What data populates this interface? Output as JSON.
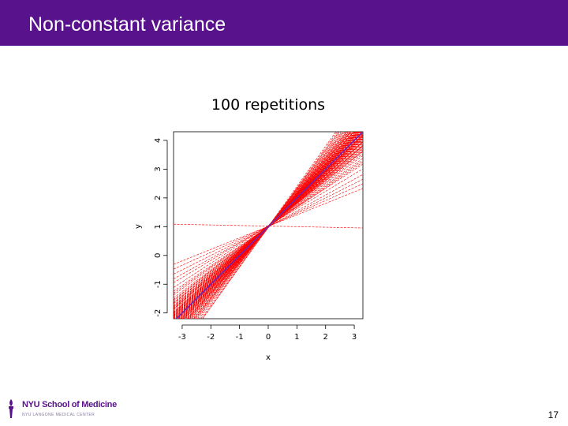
{
  "header": {
    "title": "Non-constant variance"
  },
  "colors": {
    "header_bg": "#58138c",
    "fit_lines": "#ff0000",
    "true_line": "#6a2ab8",
    "logo_purple": "#58138c"
  },
  "footer": {
    "logo_text": "NYU School of Medicine",
    "logo_subtext": "NYU LANGONE MEDICAL CENTER",
    "page_number": "17"
  },
  "chart_data": {
    "type": "line",
    "title": "100 repetitions",
    "xlabel": "x",
    "ylabel": "y",
    "xlim": [
      -3.3,
      3.3
    ],
    "ylim": [
      -2.2,
      4.3
    ],
    "xticks": [
      "-3",
      "-2",
      "-1",
      "0",
      "1",
      "2",
      "3"
    ],
    "yticks": [
      "-2",
      "-1",
      "0",
      "1",
      "2",
      "3",
      "4"
    ],
    "grid": false,
    "legend": "none",
    "true_line": {
      "intercept": 1,
      "slope": 1
    },
    "repetitions": 100,
    "fit_lines": [
      {
        "intercept": 0.98,
        "slope": 1.0
      },
      {
        "intercept": 1.02,
        "slope": 0.92
      },
      {
        "intercept": 1.0,
        "slope": 1.08
      },
      {
        "intercept": 0.97,
        "slope": 0.86
      },
      {
        "intercept": 1.01,
        "slope": 1.14
      },
      {
        "intercept": 1.03,
        "slope": 0.95
      },
      {
        "intercept": 0.99,
        "slope": 1.05
      },
      {
        "intercept": 1.0,
        "slope": 0.8
      },
      {
        "intercept": 1.02,
        "slope": 1.2
      },
      {
        "intercept": 0.98,
        "slope": 0.9
      },
      {
        "intercept": 1.01,
        "slope": 1.1
      },
      {
        "intercept": 0.99,
        "slope": 0.98
      },
      {
        "intercept": 1.0,
        "slope": 1.02
      },
      {
        "intercept": 1.04,
        "slope": 0.88
      },
      {
        "intercept": 0.96,
        "slope": 1.12
      },
      {
        "intercept": 1.0,
        "slope": 0.75
      },
      {
        "intercept": 1.0,
        "slope": 1.25
      },
      {
        "intercept": 1.01,
        "slope": 0.94
      },
      {
        "intercept": 0.99,
        "slope": 1.06
      },
      {
        "intercept": 1.02,
        "slope": 0.84
      },
      {
        "intercept": 0.98,
        "slope": 1.16
      },
      {
        "intercept": 1.0,
        "slope": 0.96
      },
      {
        "intercept": 1.0,
        "slope": 1.04
      },
      {
        "intercept": 1.03,
        "slope": 0.78
      },
      {
        "intercept": 0.97,
        "slope": 1.22
      },
      {
        "intercept": 1.01,
        "slope": 0.91
      },
      {
        "intercept": 0.99,
        "slope": 1.09
      },
      {
        "intercept": 1.0,
        "slope": 0.7
      },
      {
        "intercept": 1.0,
        "slope": 1.3
      },
      {
        "intercept": 1.02,
        "slope": 0.99
      },
      {
        "intercept": 0.98,
        "slope": 1.01
      },
      {
        "intercept": 1.01,
        "slope": 0.87
      },
      {
        "intercept": 0.99,
        "slope": 1.13
      },
      {
        "intercept": 1.0,
        "slope": 0.93
      },
      {
        "intercept": 1.0,
        "slope": 1.07
      },
      {
        "intercept": 1.02,
        "slope": 0.82
      },
      {
        "intercept": 0.98,
        "slope": 1.18
      },
      {
        "intercept": 1.0,
        "slope": 0.97
      },
      {
        "intercept": 1.0,
        "slope": 1.03
      },
      {
        "intercept": 1.03,
        "slope": 0.65
      },
      {
        "intercept": 0.97,
        "slope": 1.35
      },
      {
        "intercept": 1.01,
        "slope": 0.89
      },
      {
        "intercept": 0.99,
        "slope": 1.11
      },
      {
        "intercept": 1.0,
        "slope": 0.95
      },
      {
        "intercept": 1.0,
        "slope": 1.05
      },
      {
        "intercept": 1.02,
        "slope": 0.85
      },
      {
        "intercept": 0.98,
        "slope": 1.15
      },
      {
        "intercept": 1.0,
        "slope": 0.72
      },
      {
        "intercept": 1.0,
        "slope": 1.28
      },
      {
        "intercept": 1.01,
        "slope": 0.98
      },
      {
        "intercept": 0.99,
        "slope": 1.02
      },
      {
        "intercept": 1.0,
        "slope": 0.9
      },
      {
        "intercept": 1.0,
        "slope": 1.1
      },
      {
        "intercept": 1.03,
        "slope": 0.6
      },
      {
        "intercept": 0.97,
        "slope": 1.38
      },
      {
        "intercept": 1.01,
        "slope": 0.94
      },
      {
        "intercept": 0.99,
        "slope": 1.06
      },
      {
        "intercept": 1.0,
        "slope": 0.83
      },
      {
        "intercept": 1.0,
        "slope": 1.17
      },
      {
        "intercept": 1.02,
        "slope": 0.96
      },
      {
        "intercept": 0.98,
        "slope": 1.04
      },
      {
        "intercept": 1.0,
        "slope": 0.77
      },
      {
        "intercept": 1.0,
        "slope": 1.23
      },
      {
        "intercept": 1.01,
        "slope": 0.92
      },
      {
        "intercept": 0.99,
        "slope": 1.08
      },
      {
        "intercept": 1.0,
        "slope": 0.55
      },
      {
        "intercept": 1.0,
        "slope": 1.33
      },
      {
        "intercept": 1.02,
        "slope": 0.88
      },
      {
        "intercept": 0.98,
        "slope": 1.12
      },
      {
        "intercept": 1.0,
        "slope": 0.99
      },
      {
        "intercept": 1.0,
        "slope": 1.01
      },
      {
        "intercept": 1.01,
        "slope": 0.81
      },
      {
        "intercept": 0.99,
        "slope": 1.19
      },
      {
        "intercept": 1.0,
        "slope": 0.5
      },
      {
        "intercept": 1.0,
        "slope": 1.4
      },
      {
        "intercept": 1.02,
        "slope": 0.93
      },
      {
        "intercept": 0.98,
        "slope": 1.07
      },
      {
        "intercept": 1.0,
        "slope": 0.86
      },
      {
        "intercept": 1.0,
        "slope": 1.14
      },
      {
        "intercept": 1.01,
        "slope": 0.45
      },
      {
        "intercept": 0.99,
        "slope": 1.02
      },
      {
        "intercept": 1.0,
        "slope": 0.97
      },
      {
        "intercept": 1.0,
        "slope": 1.06
      },
      {
        "intercept": 1.02,
        "slope": 0.79
      },
      {
        "intercept": 0.98,
        "slope": 1.21
      },
      {
        "intercept": 1.0,
        "slope": 0.9
      },
      {
        "intercept": 1.0,
        "slope": 1.1
      },
      {
        "intercept": 1.01,
        "slope": 0.4
      },
      {
        "intercept": 0.99,
        "slope": 1.0
      },
      {
        "intercept": 1.0,
        "slope": 0.85
      },
      {
        "intercept": 1.0,
        "slope": 1.15
      },
      {
        "intercept": 1.02,
        "slope": 0.95
      },
      {
        "intercept": 0.98,
        "slope": 1.05
      },
      {
        "intercept": 1.0,
        "slope": 0.68
      },
      {
        "intercept": 1.0,
        "slope": 1.26
      },
      {
        "intercept": 1.01,
        "slope": 0.91
      },
      {
        "intercept": 0.99,
        "slope": 1.09
      },
      {
        "intercept": 1.0,
        "slope": 0.97
      },
      {
        "intercept": 1.0,
        "slope": 1.03
      },
      {
        "intercept": 1.02,
        "slope": -0.02
      }
    ]
  }
}
